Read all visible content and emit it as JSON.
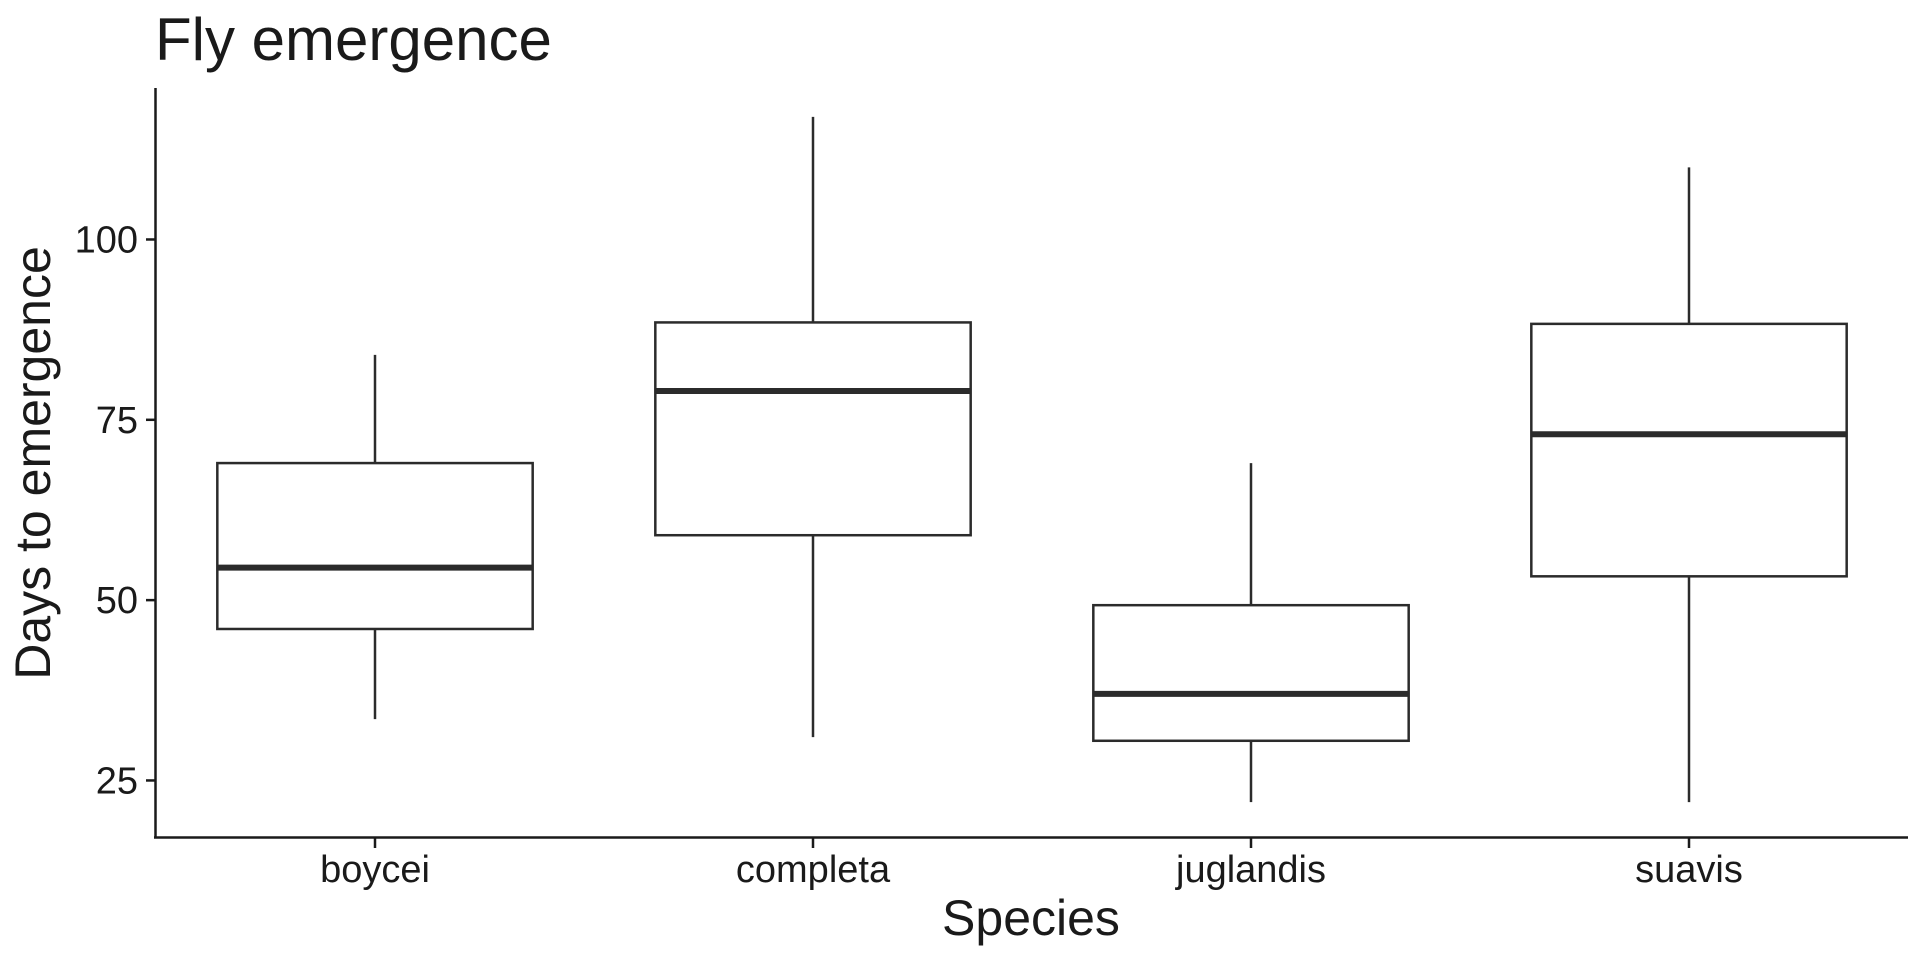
{
  "chart_data": {
    "type": "boxplot",
    "title": "Fly emergence",
    "xlabel": "Species",
    "ylabel": "Days to emergence",
    "ylim": [
      17.3,
      121
    ],
    "yticks": [
      25,
      50,
      75,
      100
    ],
    "grid": false,
    "legend": "none",
    "categories": [
      "boycei",
      "completa",
      "juglandis",
      "suavis"
    ],
    "boxes": [
      {
        "category": "boycei",
        "whisker_low": 33.5,
        "q1": 46,
        "median": 54.5,
        "q3": 69,
        "whisker_high": 84
      },
      {
        "category": "completa",
        "whisker_low": 31,
        "q1": 59,
        "median": 79,
        "q3": 88.5,
        "whisker_high": 117
      },
      {
        "category": "juglandis",
        "whisker_low": 22,
        "q1": 30.5,
        "median": 37,
        "q3": 49.3,
        "whisker_high": 69
      },
      {
        "category": "suavis",
        "whisker_low": 22,
        "q1": 53.3,
        "median": 73,
        "q3": 88.3,
        "whisker_high": 110
      }
    ],
    "colors": {
      "stroke": "#2b2b2b",
      "fill": "#ffffff",
      "axis": "#1a1a1a"
    }
  }
}
